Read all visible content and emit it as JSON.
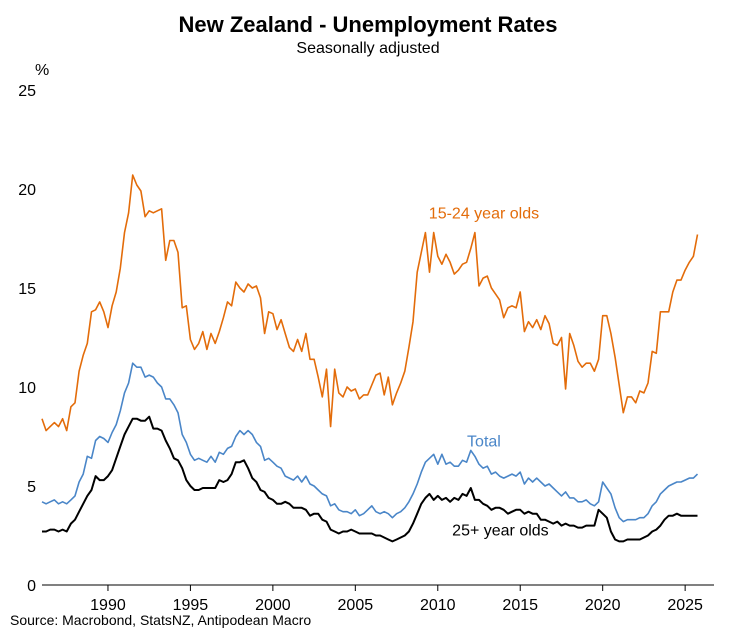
{
  "chart_data": {
    "type": "line",
    "title": "New Zealand - Unemployment Rates",
    "subtitle": "Seasonally adjusted",
    "ylabel": "%",
    "source": "Source: Macrobond, StatsNZ, Antipodean Macro",
    "xlim": [
      1986.0,
      2026.75
    ],
    "ylim": [
      0,
      25
    ],
    "x_ticks": [
      1990,
      1995,
      2000,
      2005,
      2010,
      2015,
      2020,
      2025
    ],
    "y_ticks": [
      0,
      5,
      10,
      15,
      20,
      25
    ],
    "grid": false,
    "legend": "inline labels",
    "x_start": 1986.0,
    "x_step": 0.25,
    "series": [
      {
        "name": "15-24 year olds",
        "color": "#e36c0a",
        "values": [
          8.4,
          7.8,
          8.0,
          8.2,
          8.0,
          8.4,
          7.8,
          9.0,
          9.2,
          10.8,
          11.6,
          12.2,
          13.8,
          13.9,
          14.3,
          13.8,
          13.0,
          14.1,
          14.8,
          16.0,
          17.8,
          18.8,
          20.7,
          20.2,
          19.9,
          18.6,
          18.9,
          18.8,
          18.9,
          19.0,
          16.4,
          17.4,
          17.4,
          16.8,
          14.0,
          14.1,
          12.4,
          11.9,
          12.2,
          12.8,
          11.9,
          12.7,
          12.2,
          12.8,
          13.5,
          14.3,
          14.1,
          15.3,
          15.0,
          14.8,
          15.2,
          15.0,
          15.1,
          14.5,
          12.7,
          13.8,
          13.7,
          12.9,
          13.4,
          12.7,
          12.0,
          11.8,
          12.4,
          11.8,
          12.7,
          11.4,
          11.4,
          10.5,
          9.5,
          10.9,
          8.0,
          10.9,
          9.7,
          9.5,
          10.0,
          9.8,
          9.9,
          9.4,
          9.6,
          9.6,
          10.1,
          10.6,
          10.7,
          9.6,
          10.5,
          9.1,
          9.7,
          10.2,
          10.8,
          12.0,
          13.3,
          15.8,
          16.8,
          17.8,
          15.8,
          17.8,
          16.6,
          16.2,
          16.7,
          16.3,
          15.7,
          15.9,
          16.2,
          16.3,
          17.0,
          17.8,
          15.1,
          15.5,
          15.6,
          15.0,
          14.7,
          14.4,
          13.5,
          14.0,
          14.1,
          14.0,
          14.8,
          12.8,
          13.3,
          13.0,
          13.4,
          12.9,
          13.6,
          13.2,
          12.2,
          12.1,
          12.5,
          9.9,
          12.7,
          12.1,
          11.3,
          11.0,
          11.2,
          11.2,
          10.8,
          11.4,
          13.6,
          13.6,
          12.7,
          11.5,
          10.1,
          8.7,
          9.5,
          9.5,
          9.2,
          9.8,
          9.7,
          10.2,
          11.8,
          11.7,
          13.8,
          13.8,
          13.8,
          14.8,
          15.4,
          15.4,
          15.9,
          16.3,
          16.6,
          17.7
        ]
      },
      {
        "name": "Total",
        "color": "#4a86c8",
        "values": [
          4.2,
          4.1,
          4.2,
          4.3,
          4.1,
          4.2,
          4.1,
          4.3,
          4.5,
          5.2,
          5.6,
          6.5,
          6.4,
          7.3,
          7.5,
          7.4,
          7.2,
          7.7,
          8.1,
          8.8,
          9.7,
          10.2,
          11.2,
          11.0,
          11.0,
          10.5,
          10.6,
          10.5,
          10.2,
          10.0,
          9.4,
          9.4,
          9.1,
          8.7,
          7.6,
          7.2,
          6.6,
          6.3,
          6.4,
          6.3,
          6.2,
          6.5,
          6.2,
          6.7,
          6.6,
          6.9,
          7.0,
          7.5,
          7.8,
          7.6,
          7.8,
          7.6,
          7.2,
          7.0,
          6.3,
          6.4,
          6.2,
          6.0,
          5.9,
          5.5,
          5.4,
          5.3,
          5.5,
          5.2,
          5.5,
          5.1,
          5.0,
          4.8,
          4.6,
          4.5,
          4.0,
          4.1,
          3.8,
          3.7,
          3.7,
          3.6,
          3.8,
          3.5,
          3.6,
          3.8,
          4.0,
          3.7,
          3.6,
          3.7,
          3.6,
          3.4,
          3.6,
          3.7,
          3.9,
          4.2,
          4.6,
          5.1,
          5.7,
          6.2,
          6.4,
          6.6,
          6.1,
          6.6,
          6.1,
          6.2,
          6.0,
          6.0,
          6.3,
          6.2,
          6.8,
          6.5,
          6.1,
          5.9,
          6.0,
          5.6,
          5.7,
          5.5,
          5.4,
          5.5,
          5.6,
          5.5,
          5.7,
          5.1,
          5.4,
          5.2,
          5.4,
          5.2,
          5.0,
          5.1,
          4.9,
          4.7,
          4.5,
          4.7,
          4.4,
          4.4,
          4.2,
          4.2,
          4.3,
          4.1,
          4.0,
          4.2,
          5.2,
          4.9,
          4.6,
          3.9,
          3.4,
          3.2,
          3.3,
          3.3,
          3.3,
          3.4,
          3.4,
          3.6,
          4.0,
          4.2,
          4.6,
          4.8,
          5.0,
          5.1,
          5.2,
          5.2,
          5.3,
          5.4,
          5.4,
          5.6
        ]
      },
      {
        "name": "25+ year olds",
        "color": "#000000",
        "values": [
          2.7,
          2.7,
          2.8,
          2.8,
          2.7,
          2.8,
          2.7,
          3.1,
          3.3,
          3.7,
          4.1,
          4.5,
          4.8,
          5.5,
          5.3,
          5.3,
          5.5,
          5.8,
          6.4,
          7.0,
          7.6,
          8.0,
          8.4,
          8.4,
          8.3,
          8.3,
          8.5,
          7.9,
          7.9,
          7.8,
          7.3,
          6.9,
          6.4,
          6.3,
          5.9,
          5.3,
          5.0,
          4.8,
          4.8,
          4.9,
          4.9,
          4.9,
          4.9,
          5.3,
          5.2,
          5.3,
          5.6,
          6.2,
          6.2,
          6.3,
          5.9,
          5.4,
          5.2,
          4.8,
          4.7,
          4.4,
          4.3,
          4.1,
          4.1,
          4.2,
          4.1,
          3.9,
          3.9,
          3.9,
          3.8,
          3.5,
          3.6,
          3.6,
          3.3,
          3.2,
          2.8,
          2.7,
          2.6,
          2.7,
          2.7,
          2.8,
          2.7,
          2.6,
          2.6,
          2.6,
          2.6,
          2.5,
          2.5,
          2.4,
          2.3,
          2.2,
          2.3,
          2.4,
          2.5,
          2.7,
          3.1,
          3.6,
          4.1,
          4.4,
          4.6,
          4.3,
          4.5,
          4.3,
          4.4,
          4.2,
          4.4,
          4.3,
          4.6,
          4.5,
          4.9,
          4.3,
          4.3,
          4.1,
          4.0,
          3.8,
          3.9,
          3.9,
          3.8,
          3.6,
          3.7,
          3.8,
          3.8,
          3.6,
          3.7,
          3.6,
          3.6,
          3.3,
          3.3,
          3.2,
          3.1,
          3.2,
          3.0,
          3.1,
          3.0,
          3.0,
          2.9,
          2.9,
          3.0,
          3.0,
          3.0,
          3.8,
          3.6,
          3.4,
          2.7,
          2.3,
          2.2,
          2.2,
          2.3,
          2.3,
          2.3,
          2.3,
          2.4,
          2.5,
          2.7,
          2.8,
          3.0,
          3.3,
          3.5,
          3.5,
          3.6,
          3.5,
          3.5,
          3.5,
          3.5,
          3.5
        ]
      }
    ]
  }
}
